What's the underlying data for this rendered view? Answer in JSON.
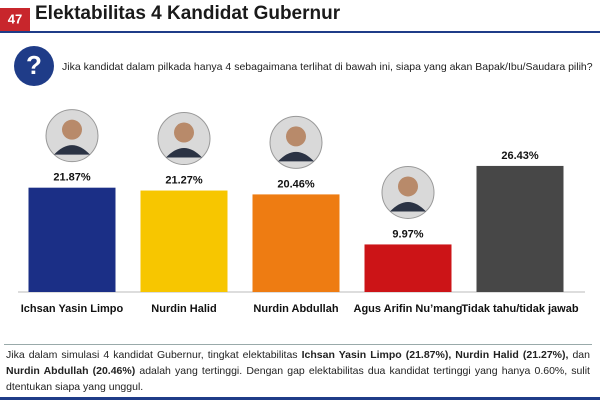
{
  "slide_number": "47",
  "question": "Jika kandidat dalam pilkada hanya 4 sebagaimana terlihat di bawah ini, siapa yang akan Bapak/Ibu/Saudara pilih?",
  "chart_data": {
    "type": "bar",
    "title": "Elektabilitas 4 Kandidat Gubernur",
    "categories": [
      "Ichsan Yasin Limpo",
      "Nurdin Halid",
      "Nurdin Abdullah",
      "Agus Arifin Nu’mang",
      "Tidak tahu/tidak jawab"
    ],
    "values": [
      21.87,
      21.27,
      20.46,
      9.97,
      26.43
    ],
    "value_labels": [
      "21.87%",
      "21.27%",
      "20.46%",
      "9.97%",
      "26.43%"
    ],
    "colors": [
      "#1b2f86",
      "#f7c600",
      "#ee7c12",
      "#cc1417",
      "#474747"
    ]
  },
  "footnote": [
    "Jika dalam simulasi 4 kandidat Gubernur, tingkat elektabilitas ",
    "Ichsan Yasin Limpo (21.87%), Nurdin Halid (21.27%),",
    " dan ",
    "Nurdin Abdullah (20.46%)",
    " adalah yang tertinggi. Dengan gap elektabilitas dua kandidat tertinggi yang hanya 0.60%, sulit dtentukan siapa yang unggul."
  ]
}
